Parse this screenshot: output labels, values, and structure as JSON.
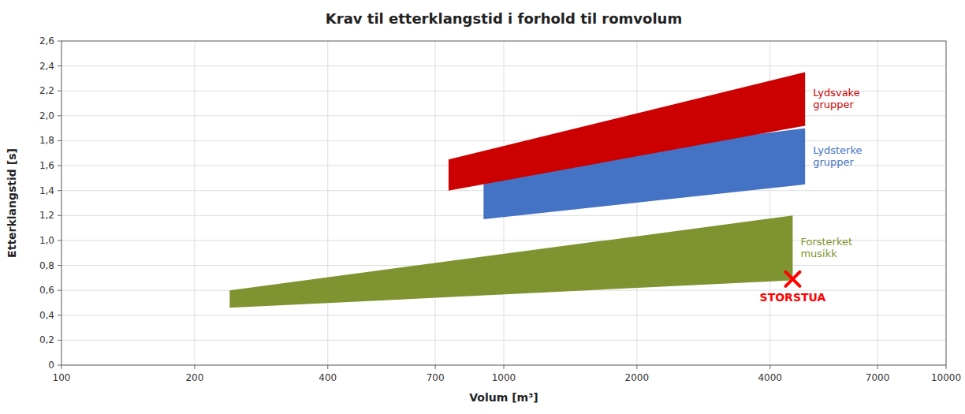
{
  "chart_data": {
    "type": "band",
    "title": "Krav til etterklangstid i forhold til romvolum",
    "x_label": "Volum [m³]",
    "y_label": "Etterklangstid [s]",
    "log": "x",
    "grid": true,
    "xlim": [
      100,
      10000
    ],
    "ylim": [
      0,
      2.6
    ],
    "xticks": [
      100,
      200,
      400,
      700,
      1000,
      2000,
      4000,
      7000,
      10000
    ],
    "yticks": [
      0,
      {
        "value": 0.2,
        "label": "0,2"
      },
      {
        "value": 0.4,
        "label": "0,4"
      },
      {
        "value": 0.6,
        "label": "0,6"
      },
      {
        "value": 0.8,
        "label": "0,8"
      },
      {
        "value": 1.0,
        "label": "1,0"
      },
      {
        "value": 1.2,
        "label": "1,2"
      },
      {
        "value": 1.4,
        "label": "1,4"
      },
      {
        "value": 1.6,
        "label": "1,6"
      },
      {
        "value": 1.8,
        "label": "1,8"
      },
      {
        "value": 2.0,
        "label": "2,0"
      },
      {
        "value": 2.2,
        "label": "2,2"
      },
      {
        "value": 2.4,
        "label": "2,4"
      },
      {
        "value": 2.6,
        "label": "2,6"
      }
    ],
    "series": [
      {
        "name": "Lydsvake\ngrupper",
        "color": "#cc0000",
        "x": [
          750,
          4800
        ],
        "low": [
          1.4,
          1.92
        ],
        "high": [
          1.65,
          2.35
        ]
      },
      {
        "name": "Lydsterke\ngrupper",
        "color": "#4472c4",
        "x": [
          900,
          4800
        ],
        "low": [
          1.17,
          1.45
        ],
        "high": [
          1.58,
          1.9
        ]
      },
      {
        "name": "Forsterket\nmusikk",
        "color": "#7f9430",
        "x": [
          240,
          4500
        ],
        "low": [
          0.46,
          0.68
        ],
        "high": [
          0.6,
          1.2
        ]
      }
    ],
    "annotations": [
      {
        "x": 4500,
        "y": 0.69,
        "text": "STORSTUA",
        "color": "#ff0000",
        "marker": "x"
      }
    ]
  }
}
